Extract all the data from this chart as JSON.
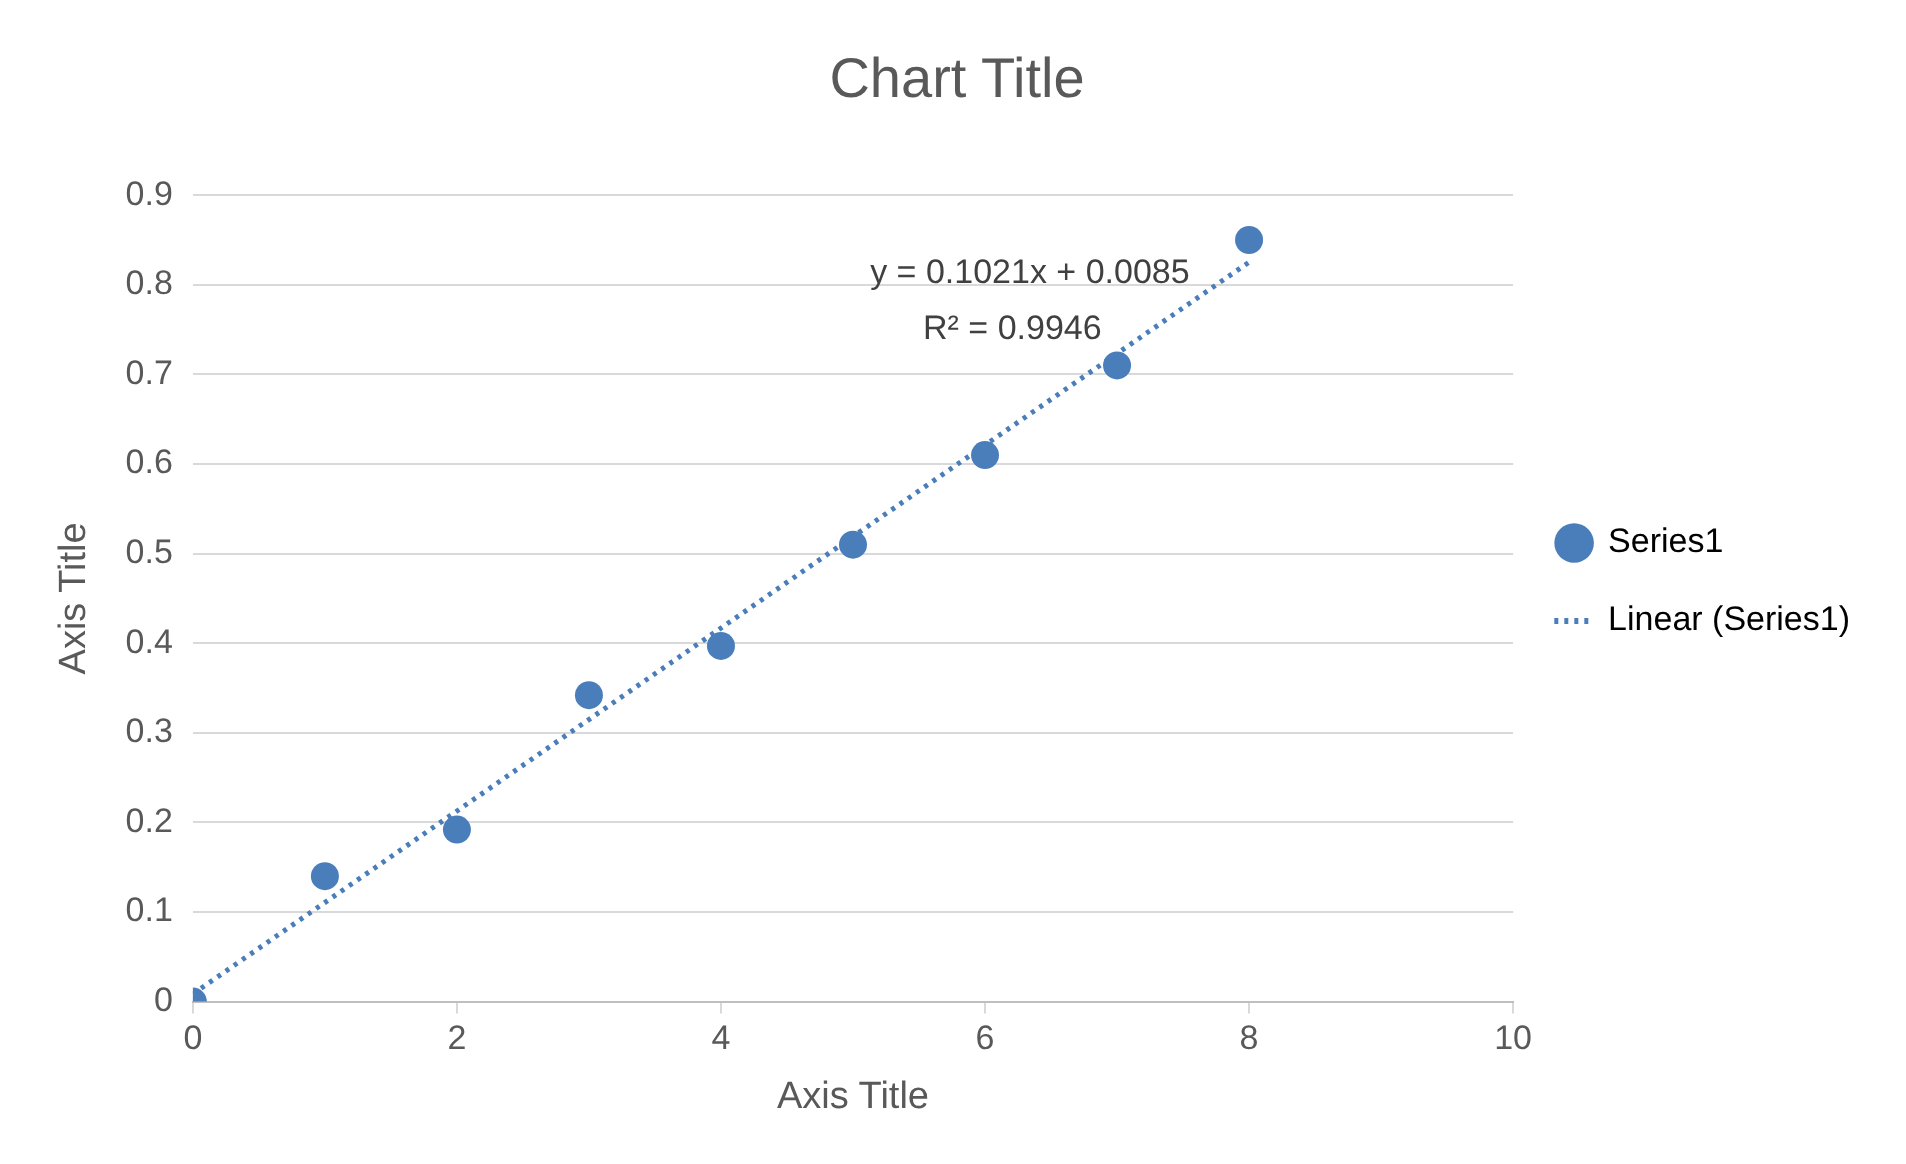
{
  "chart_data": {
    "type": "scatter",
    "title": "Chart Title",
    "xlabel": "Axis Title",
    "ylabel": "Axis Title",
    "x": [
      0,
      1,
      2,
      3,
      4,
      5,
      6,
      7,
      8
    ],
    "series": [
      {
        "name": "Series1",
        "color": "#4a7ebb",
        "values": [
          0,
          0.14,
          0.192,
          0.342,
          0.397,
          0.51,
          0.61,
          0.71,
          0.85
        ]
      },
      {
        "name": "Linear (Series1)",
        "type": "line",
        "color": "#4a7ebb",
        "x": [
          0,
          8
        ],
        "values": [
          0.0085,
          0.8253
        ],
        "line_style": "dotted",
        "marker": "none"
      }
    ],
    "annotations": [
      "y = 0.1021x + 0.0085",
      "R² = 0.9946"
    ],
    "xlim": [
      0,
      10
    ],
    "xticks": [
      0,
      2,
      4,
      6,
      8,
      10
    ],
    "ylim": [
      0,
      0.9
    ],
    "yticks": [
      0,
      0.1,
      0.2,
      0.3,
      0.4,
      0.5,
      0.6,
      0.7,
      0.8,
      0.9
    ],
    "grid": "y",
    "legend": "right",
    "marker": "circle"
  }
}
